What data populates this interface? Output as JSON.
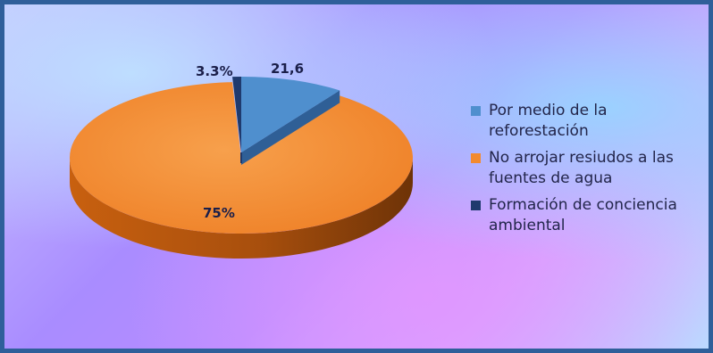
{
  "chart_data": {
    "type": "pie",
    "style": "3d",
    "title": "",
    "slices": [
      {
        "label": "Por medio de la reforestación",
        "value": 21.6,
        "data_label": "21,6",
        "color": "#4f8fce"
      },
      {
        "label": "No arrojar resiudos a las fuentes de agua",
        "value": 75,
        "data_label": "75%",
        "color": "#f28a2e"
      },
      {
        "label": "Formación de conciencia ambiental",
        "value": 3.3,
        "data_label": "3.3%",
        "color": "#1f3a6e"
      }
    ],
    "legend_position": "right"
  },
  "colors": {
    "frame_border": "#2f5f9a",
    "orange_side": "#a04a0c"
  }
}
